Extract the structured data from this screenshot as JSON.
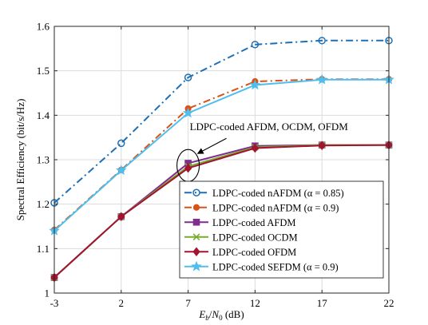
{
  "chart_data": {
    "type": "line",
    "title": "",
    "xlabel": "E_b/N_0 (dB)",
    "xlabel_parts": {
      "E": "E",
      "b": "b",
      "slash": "/",
      "N": "N",
      "zero": "0",
      "unit": " (dB)"
    },
    "ylabel": "Spectral Efficiency (bit/s/Hz)",
    "x": [
      -3,
      2,
      7,
      12,
      17,
      22
    ],
    "x_tick_labels": [
      "-3",
      "2",
      "7",
      "12",
      "17",
      "22"
    ],
    "y_ticks": [
      1,
      1.1,
      1.2,
      1.3,
      1.4,
      1.5,
      1.6
    ],
    "y_tick_labels": [
      "1",
      "1.1",
      "1.2",
      "1.3",
      "1.4",
      "1.5",
      "1.6"
    ],
    "xlim": [
      -3,
      22
    ],
    "ylim": [
      1,
      1.6
    ],
    "grid": true,
    "legend_position": "bottom-right",
    "series": [
      {
        "name": "LDPC-coded nAFDM (α = 0.85)",
        "color": "#1f6fb4",
        "dash": "dashdot",
        "marker": "circle",
        "values": [
          1.203,
          1.337,
          1.485,
          1.559,
          1.568,
          1.568
        ]
      },
      {
        "name": "LDPC-coded nAFDM (α = 0.9)",
        "color": "#d95319",
        "dash": "dashdot",
        "marker": "dot",
        "values": [
          1.142,
          1.277,
          1.415,
          1.476,
          1.481,
          1.481
        ]
      },
      {
        "name": "LDPC-coded AFDM",
        "color": "#7e2f8e",
        "dash": "solid",
        "marker": "square",
        "values": [
          1.035,
          1.172,
          1.292,
          1.331,
          1.333,
          1.333
        ]
      },
      {
        "name": "LDPC-coded OCDM",
        "color": "#77ac30",
        "dash": "solid",
        "marker": "x",
        "values": [
          1.035,
          1.172,
          1.285,
          1.328,
          1.333,
          1.333
        ]
      },
      {
        "name": "LDPC-coded OFDM",
        "color": "#a2142f",
        "dash": "solid",
        "marker": "diamond",
        "values": [
          1.035,
          1.172,
          1.281,
          1.326,
          1.332,
          1.333
        ]
      },
      {
        "name": "LDPC-coded SEFDM (α = 0.9)",
        "color": "#4dbeee",
        "dash": "solid",
        "marker": "star",
        "values": [
          1.14,
          1.276,
          1.405,
          1.468,
          1.48,
          1.48
        ]
      }
    ],
    "annotations": [
      {
        "text": "LDPC-coded AFDM, OCDM, OFDM",
        "target_x": 7,
        "target_y": 1.287
      }
    ]
  }
}
